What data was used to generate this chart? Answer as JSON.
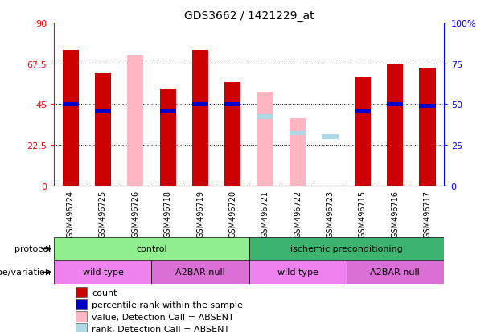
{
  "title": "GDS3662 / 1421229_at",
  "samples": [
    "GSM496724",
    "GSM496725",
    "GSM496726",
    "GSM496718",
    "GSM496719",
    "GSM496720",
    "GSM496721",
    "GSM496722",
    "GSM496723",
    "GSM496715",
    "GSM496716",
    "GSM496717"
  ],
  "count_values": [
    75,
    62,
    0,
    53,
    75,
    57,
    0,
    0,
    0,
    60,
    67,
    65
  ],
  "percentile_values": [
    45,
    41,
    0,
    41,
    45,
    45,
    0,
    0,
    0,
    41,
    45,
    44
  ],
  "absent_value_values": [
    0,
    0,
    72,
    0,
    0,
    0,
    52,
    37,
    0,
    0,
    0,
    0
  ],
  "absent_rank_values": [
    0,
    0,
    0,
    0,
    0,
    0,
    38,
    29,
    27,
    0,
    0,
    0
  ],
  "is_absent": [
    false,
    false,
    true,
    false,
    false,
    false,
    true,
    true,
    true,
    false,
    false,
    false
  ],
  "protocol_groups": [
    {
      "label": "control",
      "start": 0,
      "end": 6,
      "color": "#90EE90"
    },
    {
      "label": "ischemic preconditioning",
      "start": 6,
      "end": 12,
      "color": "#3CB371"
    }
  ],
  "genotype_groups": [
    {
      "label": "wild type",
      "start": 0,
      "end": 3,
      "color": "#EE82EE"
    },
    {
      "label": "A2BAR null",
      "start": 3,
      "end": 6,
      "color": "#DA70D6"
    },
    {
      "label": "wild type",
      "start": 6,
      "end": 9,
      "color": "#EE82EE"
    },
    {
      "label": "A2BAR null",
      "start": 9,
      "end": 12,
      "color": "#DA70D6"
    }
  ],
  "ylim_left": [
    0,
    90
  ],
  "ylim_right": [
    0,
    100
  ],
  "yticks_left": [
    0,
    22.5,
    45,
    67.5,
    90
  ],
  "yticks_right": [
    0,
    25,
    50,
    75,
    100
  ],
  "ytick_labels_left": [
    "0",
    "22.5",
    "45",
    "67.5",
    "90"
  ],
  "ytick_labels_right": [
    "0",
    "25",
    "50",
    "75",
    "100%"
  ],
  "count_color": "#CC0000",
  "percentile_color": "#0000CC",
  "absent_value_color": "#FFB6C1",
  "absent_rank_color": "#ADD8E6",
  "legend_items": [
    {
      "color": "#CC0000",
      "label": "count"
    },
    {
      "color": "#0000CC",
      "label": "percentile rank within the sample"
    },
    {
      "color": "#FFB6C1",
      "label": "value, Detection Call = ABSENT"
    },
    {
      "color": "#ADD8E6",
      "label": "rank, Detection Call = ABSENT"
    }
  ]
}
